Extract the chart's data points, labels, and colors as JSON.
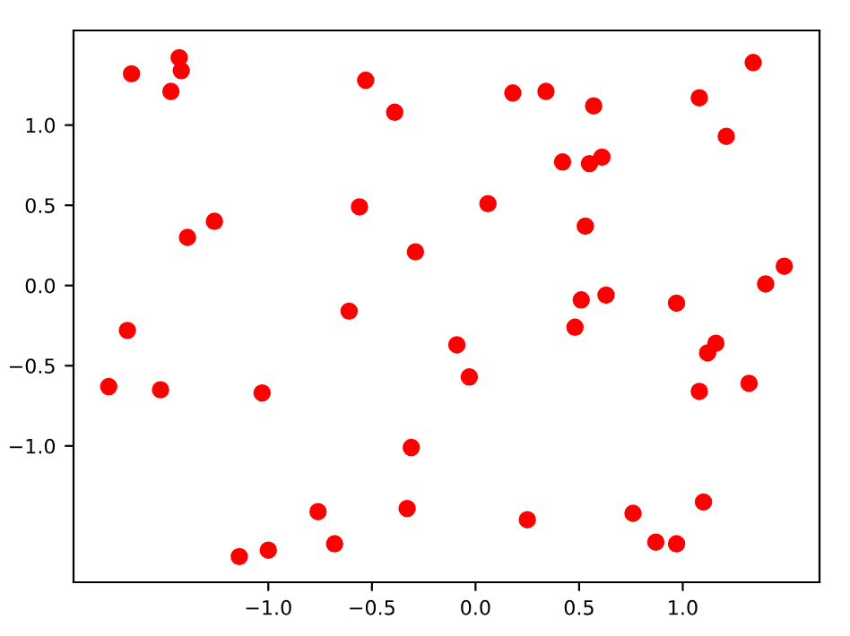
{
  "chart_data": {
    "type": "scatter",
    "marker": "circle",
    "grid": false,
    "x": [
      -1.66,
      -1.43,
      -1.42,
      -1.47,
      -1.39,
      -1.26,
      -0.56,
      -0.53,
      -0.39,
      -0.29,
      -0.61,
      0.18,
      0.34,
      0.57,
      0.42,
      0.55,
      0.61,
      0.06,
      0.53,
      1.08,
      1.34,
      1.21,
      1.49,
      1.4,
      0.51,
      0.63,
      0.97,
      -1.68,
      -1.77,
      -1.52,
      -1.03,
      -0.31,
      -0.33,
      -0.76,
      -0.68,
      -1.0,
      -1.14,
      0.48,
      -0.09,
      -0.03,
      1.16,
      1.12,
      1.08,
      1.32,
      1.1,
      0.76,
      0.25,
      0.87,
      0.97
    ],
    "series": [
      {
        "color": "#ff0000",
        "values": [
          1.32,
          1.42,
          1.34,
          1.21,
          0.3,
          0.4,
          0.49,
          1.28,
          1.08,
          0.21,
          -0.16,
          1.2,
          1.21,
          1.12,
          0.77,
          0.76,
          0.8,
          0.51,
          0.37,
          1.17,
          1.39,
          0.93,
          0.12,
          0.01,
          -0.09,
          -0.06,
          -0.11,
          -0.28,
          -0.63,
          -0.65,
          -0.67,
          -1.01,
          -1.39,
          -1.41,
          -1.61,
          -1.65,
          -1.69,
          -0.26,
          -0.37,
          -0.57,
          -0.36,
          -0.42,
          -0.66,
          -0.61,
          -1.35,
          -1.42,
          -1.46,
          -1.6,
          -1.61
        ]
      }
    ],
    "xlim": [
      -1.94,
      1.66
    ],
    "ylim": [
      -1.85,
      1.59
    ],
    "xticks": [
      {
        "value": -1.0,
        "label": "−1.0"
      },
      {
        "value": -0.5,
        "label": "−0.5"
      },
      {
        "value": 0.0,
        "label": "0.0"
      },
      0.5,
      {
        "value": 1.0,
        "label": "1.0"
      }
    ],
    "yticks": [
      {
        "value": -1.0,
        "label": "−1.0"
      },
      {
        "value": -0.5,
        "label": "−0.5"
      },
      {
        "value": 0.0,
        "label": "0.0"
      },
      0.5,
      {
        "value": 1.0,
        "label": "1.0"
      }
    ]
  }
}
